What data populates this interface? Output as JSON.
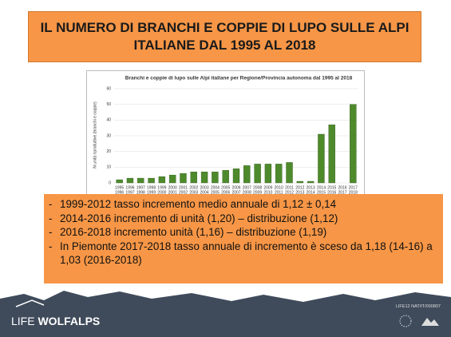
{
  "header": {
    "title": "IL NUMERO DI BRANCHI E COPPIE DI LUPO SULLE ALPI ITALIANE DAL 1995 AL 2018"
  },
  "chart_data": {
    "type": "bar",
    "title": "Branchi e coppie di lupo sulle Alpi italiane per Regione/Provincia autonoma dal 1995 al 2018",
    "y_label": "N unità riproduttive (branchi e coppie)",
    "categories": [
      [
        "1995",
        "1996"
      ],
      [
        "1996",
        "1997"
      ],
      [
        "1997",
        "1998"
      ],
      [
        "1998",
        "1999"
      ],
      [
        "1999",
        "2000"
      ],
      [
        "2000",
        "2001"
      ],
      [
        "2001",
        "2002"
      ],
      [
        "2002",
        "2003"
      ],
      [
        "2003",
        "2004"
      ],
      [
        "2004",
        "2005"
      ],
      [
        "2005",
        "2006"
      ],
      [
        "2006",
        "2007"
      ],
      [
        "2007",
        "2008"
      ],
      [
        "2008",
        "2009"
      ],
      [
        "2009",
        "2010"
      ],
      [
        "2010",
        "2011"
      ],
      [
        "2011",
        "2012"
      ],
      [
        "2012",
        "2013"
      ],
      [
        "2013",
        "2014"
      ],
      [
        "2014",
        "2015"
      ],
      [
        "2015",
        "2016"
      ],
      [
        "2016",
        "2017"
      ],
      [
        "2017",
        "2018"
      ]
    ],
    "values": [
      2,
      3,
      3,
      3,
      4,
      5,
      6,
      7,
      7,
      7,
      8,
      9,
      11,
      12,
      12,
      12,
      13,
      1,
      1,
      31,
      37,
      null,
      50
    ],
    "color": "#4e8a2c",
    "ylim": [
      0,
      60
    ],
    "yticks": [
      0,
      10,
      20,
      30,
      40,
      50,
      60
    ],
    "grid": true
  },
  "bullets": [
    "1999-2012 tasso incremento medio annuale di 1,12 ± 0,14",
    "2014-2016 incremento di  unità (1,20) – distribuzione (1,12)",
    "2016-2018 incremento unità (1,16) – distribuzione (1,19)",
    "In Piemonte 2017-2018 tasso annuale di incremento è sceso da 1,18 (14-16) a 1,03 (2016-2018)"
  ],
  "footer": {
    "logo_prefix": "LIFE",
    "logo_main": "WOLFALPS",
    "code": "LIFE12 NAT/IT/000807"
  }
}
